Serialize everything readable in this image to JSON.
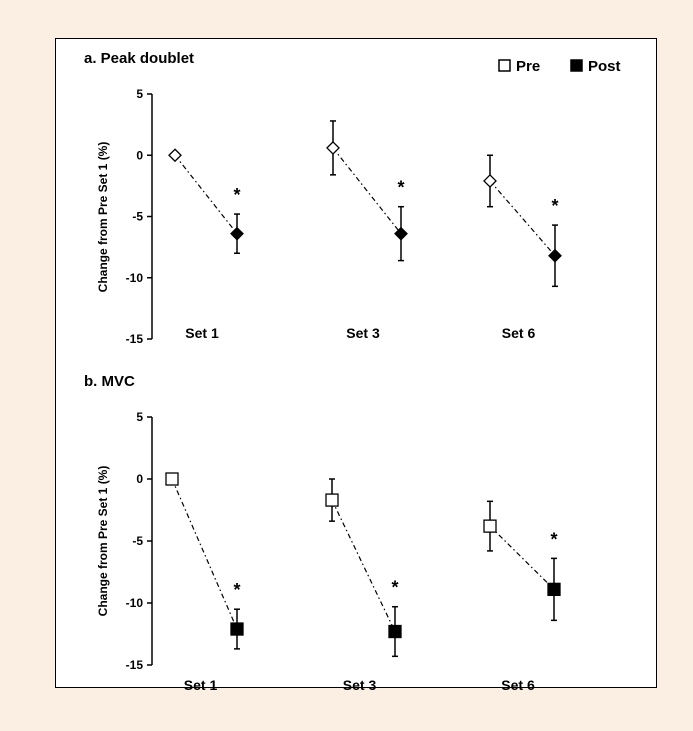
{
  "legend": {
    "items": [
      {
        "label": "Pre",
        "marker": "open"
      },
      {
        "label": "Post",
        "marker": "filled"
      }
    ],
    "placement": "top-right"
  },
  "chart_data": [
    {
      "type": "scatter",
      "title": "a. Peak doublet",
      "ylabel": "Change from Pre Set 1 (%)",
      "xlabel": "",
      "ylim": [
        -15,
        5
      ],
      "yticks": [
        5,
        0,
        -5,
        -10,
        -15
      ],
      "categories": [
        "Set 1",
        "Set 3",
        "Set 6"
      ],
      "marker_shape": "diamond",
      "series": [
        {
          "name": "Pre",
          "marker": "open",
          "values": [
            0,
            0.6,
            -2.1
          ],
          "errors": [
            0,
            2.2,
            2.1
          ]
        },
        {
          "name": "Post",
          "marker": "filled",
          "values": [
            -6.4,
            -6.4,
            -8.2
          ],
          "errors": [
            1.6,
            2.2,
            2.5
          ]
        }
      ],
      "annotations": [
        "*",
        "*",
        "*"
      ],
      "grid": false
    },
    {
      "type": "scatter",
      "title": "b. MVC",
      "ylabel": "Change from Pre Set 1 (%)",
      "xlabel": "",
      "ylim": [
        -15,
        5
      ],
      "yticks": [
        5,
        0,
        -5,
        -10,
        -15
      ],
      "categories": [
        "Set 1",
        "Set 3",
        "Set 6"
      ],
      "marker_shape": "square",
      "series": [
        {
          "name": "Pre",
          "marker": "open",
          "values": [
            0,
            -1.7,
            -3.8
          ],
          "errors": [
            0,
            1.7,
            2.0
          ]
        },
        {
          "name": "Post",
          "marker": "filled",
          "values": [
            -12.1,
            -12.3,
            -8.9
          ],
          "errors": [
            1.6,
            2.0,
            2.5
          ]
        }
      ],
      "annotations": [
        "*",
        "*",
        "*"
      ],
      "grid": false
    }
  ]
}
